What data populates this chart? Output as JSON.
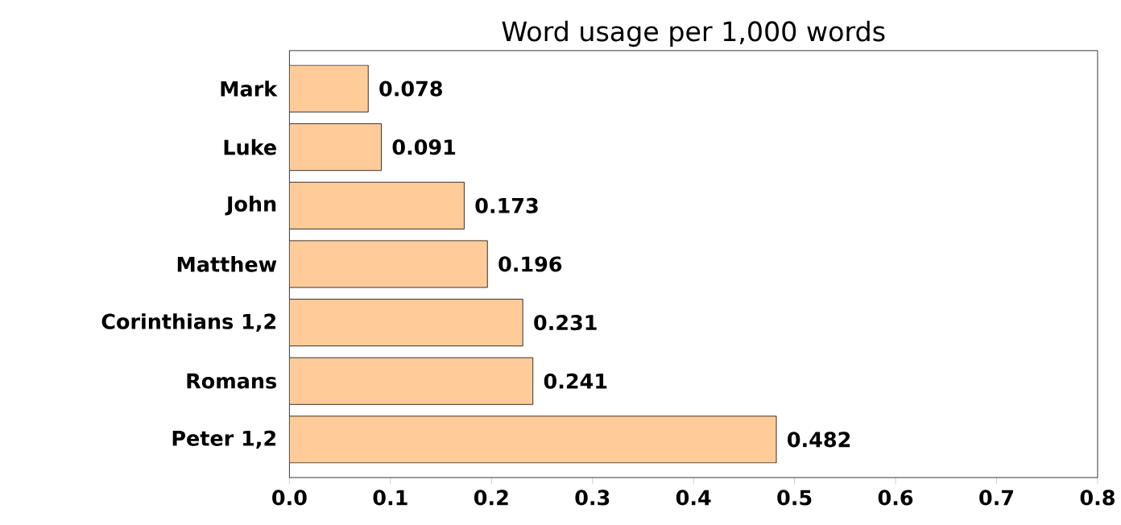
{
  "chart_data": {
    "type": "bar",
    "orientation": "horizontal",
    "title": "Word usage per 1,000 words",
    "categories": [
      "Mark",
      "Luke",
      "John",
      "Matthew",
      "Corinthians 1,2",
      "Romans",
      "Peter 1,2"
    ],
    "values": [
      0.078,
      0.091,
      0.173,
      0.196,
      0.231,
      0.241,
      0.482
    ],
    "color": "#ffcc99",
    "data_labels": true,
    "xlim": [
      0,
      0.8
    ],
    "xticks": [
      {
        "value": 0,
        "label": "0.0"
      },
      {
        "value": 0.1,
        "label": "0.1"
      },
      {
        "value": 0.2,
        "label": "0.2"
      },
      {
        "value": 0.3,
        "label": "0.3"
      },
      {
        "value": 0.4,
        "label": "0.4"
      },
      {
        "value": 0.5,
        "label": "0.5"
      },
      {
        "value": 0.6,
        "label": "0.6"
      },
      {
        "value": 0.7,
        "label": "0.7"
      },
      {
        "value": 0.8,
        "label": "0.8"
      }
    ]
  }
}
